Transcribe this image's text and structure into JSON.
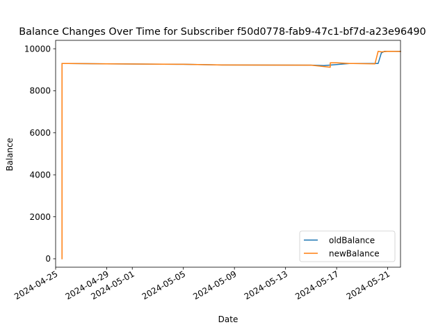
{
  "chart_data": {
    "type": "line",
    "title": "Balance Changes Over Time for Subscriber f50d0778-fab9-47c1-bf7d-a23e96490",
    "xlabel": "Date",
    "ylabel": "Balance",
    "xlim": [
      "2024-04-25",
      "2024-05-22"
    ],
    "ylim": [
      -400,
      10400
    ],
    "x_ticks": [
      "2024-04-25",
      "2024-04-29",
      "2024-05-01",
      "2024-05-05",
      "2024-05-09",
      "2024-05-13",
      "2024-05-17",
      "2024-05-21"
    ],
    "y_ticks": [
      0,
      2000,
      4000,
      6000,
      8000,
      10000
    ],
    "grid": false,
    "legend_position": "lower-right",
    "series": [
      {
        "name": "oldBalance",
        "color": "#1f77b4",
        "points": [
          [
            "2024-04-25T12:00",
            9300
          ],
          [
            "2024-04-26T00:00",
            9300
          ],
          [
            "2024-04-29T00:00",
            9280
          ],
          [
            "2024-05-05T00:00",
            9260
          ],
          [
            "2024-05-08T00:00",
            9230
          ],
          [
            "2024-05-15T00:00",
            9220
          ],
          [
            "2024-05-16T00:00",
            9200
          ],
          [
            "2024-05-17T00:00",
            9250
          ],
          [
            "2024-05-18T00:00",
            9300
          ],
          [
            "2024-05-20T00:00",
            9300
          ],
          [
            "2024-05-20T06:00",
            9300
          ],
          [
            "2024-05-20T12:00",
            9800
          ],
          [
            "2024-05-20T18:00",
            9880
          ],
          [
            "2024-05-22T00:00",
            9880
          ]
        ]
      },
      {
        "name": "newBalance",
        "color": "#ff7f0e",
        "points": [
          [
            "2024-04-25T12:00",
            0
          ],
          [
            "2024-04-25T12:00",
            9300
          ],
          [
            "2024-04-26T00:00",
            9300
          ],
          [
            "2024-04-29T00:00",
            9280
          ],
          [
            "2024-05-05T00:00",
            9260
          ],
          [
            "2024-05-08T00:00",
            9230
          ],
          [
            "2024-05-15T00:00",
            9220
          ],
          [
            "2024-05-16T12:00",
            9120
          ],
          [
            "2024-05-16T12:00",
            9330
          ],
          [
            "2024-05-17T00:00",
            9330
          ],
          [
            "2024-05-18T00:00",
            9300
          ],
          [
            "2024-05-20T00:00",
            9280
          ],
          [
            "2024-05-20T06:00",
            9880
          ],
          [
            "2024-05-20T12:00",
            9850
          ],
          [
            "2024-05-21T00:00",
            9880
          ],
          [
            "2024-05-22T00:00",
            9870
          ]
        ]
      }
    ]
  }
}
